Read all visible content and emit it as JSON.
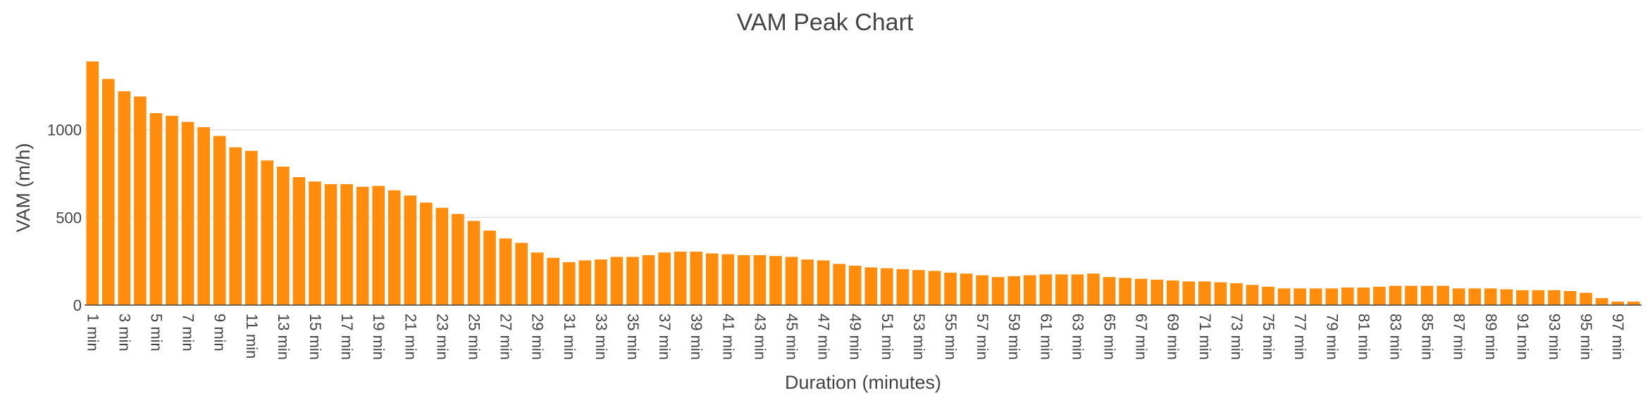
{
  "chart_data": {
    "type": "bar",
    "title": "VAM Peak Chart",
    "xlabel": "Duration (minutes)",
    "ylabel": "VAM (m/h)",
    "ylim": [
      0,
      1500
    ],
    "yticks": [
      "0",
      "500",
      "1000"
    ],
    "grid": true,
    "legend": "none",
    "color": "#ff8c0a",
    "categories": [
      "1 min",
      "2 min",
      "3 min",
      "4 min",
      "5 min",
      "6 min",
      "7 min",
      "8 min",
      "9 min",
      "10 min",
      "11 min",
      "12 min",
      "13 min",
      "14 min",
      "15 min",
      "16 min",
      "17 min",
      "18 min",
      "19 min",
      "20 min",
      "21 min",
      "22 min",
      "23 min",
      "24 min",
      "25 min",
      "26 min",
      "27 min",
      "28 min",
      "29 min",
      "30 min",
      "31 min",
      "32 min",
      "33 min",
      "34 min",
      "35 min",
      "36 min",
      "37 min",
      "38 min",
      "39 min",
      "40 min",
      "41 min",
      "42 min",
      "43 min",
      "44 min",
      "45 min",
      "46 min",
      "47 min",
      "48 min",
      "49 min",
      "50 min",
      "51 min",
      "52 min",
      "53 min",
      "54 min",
      "55 min",
      "56 min",
      "57 min",
      "58 min",
      "59 min",
      "60 min",
      "61 min",
      "62 min",
      "63 min",
      "64 min",
      "65 min",
      "66 min",
      "67 min",
      "68 min",
      "69 min",
      "70 min",
      "71 min",
      "72 min",
      "73 min",
      "74 min",
      "75 min",
      "76 min",
      "77 min",
      "78 min",
      "79 min",
      "80 min",
      "81 min",
      "82 min",
      "83 min",
      "84 min",
      "85 min",
      "86 min",
      "87 min",
      "88 min",
      "89 min",
      "90 min",
      "91 min",
      "92 min",
      "93 min",
      "94 min",
      "95 min",
      "96 min",
      "97 min",
      "98 min"
    ],
    "values": [
      1390,
      1290,
      1220,
      1190,
      1095,
      1080,
      1045,
      1015,
      965,
      900,
      880,
      825,
      790,
      730,
      705,
      690,
      690,
      675,
      680,
      655,
      625,
      585,
      555,
      520,
      480,
      425,
      380,
      355,
      300,
      270,
      245,
      255,
      260,
      275,
      275,
      285,
      300,
      305,
      305,
      295,
      290,
      285,
      285,
      280,
      275,
      260,
      255,
      235,
      225,
      215,
      210,
      205,
      200,
      195,
      185,
      180,
      170,
      160,
      165,
      170,
      175,
      175,
      175,
      180,
      160,
      155,
      150,
      145,
      140,
      135,
      135,
      130,
      125,
      115,
      105,
      95,
      95,
      95,
      95,
      100,
      100,
      105,
      110,
      110,
      110,
      110,
      95,
      95,
      95,
      90,
      85,
      85,
      85,
      80,
      70,
      40,
      20,
      20
    ]
  }
}
